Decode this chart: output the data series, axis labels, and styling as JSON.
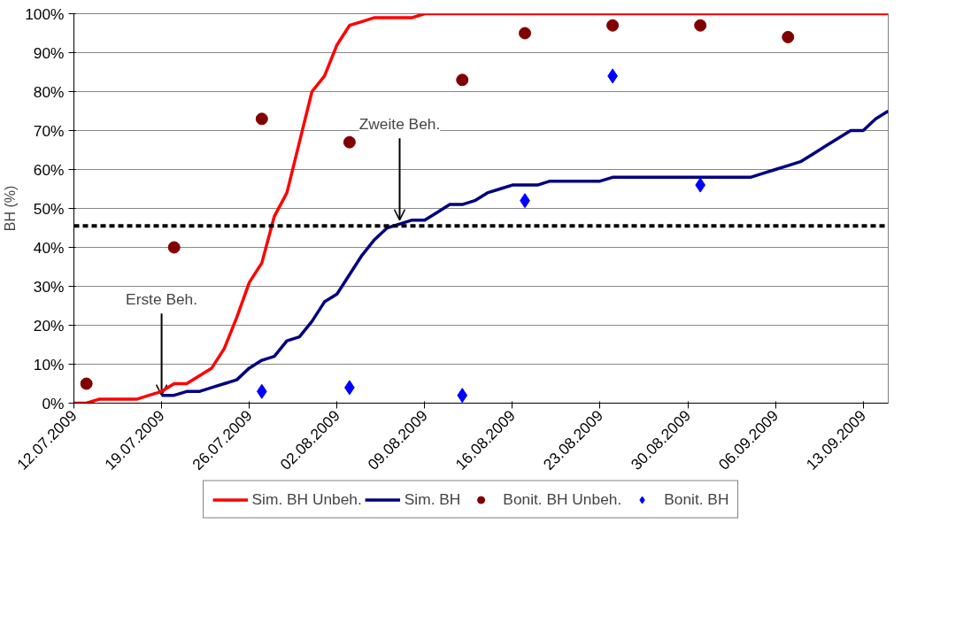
{
  "chart_data": {
    "type": "line",
    "ylabel": "BH (%)",
    "x": [
      "2009-07-12",
      "2009-07-13",
      "2009-07-14",
      "2009-07-15",
      "2009-07-16",
      "2009-07-17",
      "2009-07-18",
      "2009-07-19",
      "2009-07-20",
      "2009-07-21",
      "2009-07-22",
      "2009-07-23",
      "2009-07-24",
      "2009-07-25",
      "2009-07-26",
      "2009-07-27",
      "2009-07-28",
      "2009-07-29",
      "2009-07-30",
      "2009-07-31",
      "2009-08-01",
      "2009-08-02",
      "2009-08-03",
      "2009-08-04",
      "2009-08-05",
      "2009-08-06",
      "2009-08-07",
      "2009-08-08",
      "2009-08-09",
      "2009-08-10",
      "2009-08-11",
      "2009-08-12",
      "2009-08-13",
      "2009-08-14",
      "2009-08-15",
      "2009-08-16",
      "2009-08-17",
      "2009-08-18",
      "2009-08-19",
      "2009-08-20",
      "2009-08-21",
      "2009-08-22",
      "2009-08-23",
      "2009-08-24",
      "2009-08-25",
      "2009-08-26",
      "2009-08-27",
      "2009-08-28",
      "2009-08-29",
      "2009-08-30",
      "2009-08-31",
      "2009-09-01",
      "2009-09-02",
      "2009-09-03",
      "2009-09-04",
      "2009-09-05",
      "2009-09-06",
      "2009-09-07",
      "2009-09-08",
      "2009-09-09",
      "2009-09-10",
      "2009-09-11",
      "2009-09-12",
      "2009-09-13",
      "2009-09-14",
      "2009-09-15"
    ],
    "series": [
      {
        "name": "Sim. BH Unbeh.",
        "color": "#ff0000",
        "marker": "none",
        "values": [
          0,
          0,
          1,
          1,
          1,
          1,
          2,
          3,
          5,
          5,
          7,
          9,
          14,
          22,
          31,
          36,
          48,
          54,
          67,
          80,
          84,
          92,
          97,
          98,
          99,
          99,
          99,
          99,
          100,
          100,
          100,
          100,
          100,
          100,
          100,
          100,
          100,
          100,
          100,
          100,
          100,
          100,
          100,
          100,
          100,
          100,
          100,
          100,
          100,
          100,
          100,
          100,
          100,
          100,
          100,
          100,
          100,
          100,
          100,
          100,
          100,
          100,
          100,
          100,
          100,
          100
        ]
      },
      {
        "name": "Sim. BH",
        "color": "#000080",
        "marker": "none",
        "values": [
          null,
          null,
          null,
          null,
          null,
          null,
          null,
          2,
          2,
          3,
          3,
          4,
          5,
          6,
          9,
          11,
          12,
          16,
          17,
          21,
          26,
          28,
          33,
          38,
          42,
          45,
          46,
          47,
          47,
          49,
          51,
          51,
          52,
          54,
          55,
          56,
          56,
          56,
          57,
          57,
          57,
          57,
          57,
          58,
          58,
          58,
          58,
          58,
          58,
          58,
          58,
          58,
          58,
          58,
          58,
          59,
          60,
          61,
          62,
          64,
          66,
          68,
          70,
          70,
          73,
          75
        ]
      },
      {
        "name": "Bonit. BH Unbeh.",
        "color": "#800000",
        "type": "scatter",
        "marker": "circle",
        "x": [
          "2009-07-13",
          "2009-07-20",
          "2009-07-27",
          "2009-08-03",
          "2009-08-12",
          "2009-08-17",
          "2009-08-24",
          "2009-08-31",
          "2009-09-07"
        ],
        "values": [
          5,
          40,
          73,
          67,
          83,
          95,
          97,
          97,
          94
        ]
      },
      {
        "name": "Bonit. BH",
        "color": "#0000ff",
        "type": "scatter",
        "marker": "diamond",
        "x": [
          "2009-07-27",
          "2009-08-03",
          "2009-08-12",
          "2009-08-17",
          "2009-08-24",
          "2009-08-31"
        ],
        "values": [
          3,
          4,
          2,
          52,
          84,
          56
        ]
      }
    ],
    "xlim": [
      "2009-07-12",
      "2009-09-15"
    ],
    "xticks": [
      {
        "value": "2009-07-12",
        "label": "12.07.2009"
      },
      {
        "value": "2009-07-19",
        "label": "19.07.2009"
      },
      {
        "value": "2009-07-26",
        "label": "26.07.2009"
      },
      {
        "value": "2009-08-02",
        "label": "02.08.2009"
      },
      {
        "value": "2009-08-09",
        "label": "09.08.2009"
      },
      {
        "value": "2009-08-16",
        "label": "16.08.2009"
      },
      {
        "value": "2009-08-23",
        "label": "23.08.2009"
      },
      {
        "value": "2009-08-30",
        "label": "30.08.2009"
      },
      {
        "value": "2009-09-06",
        "label": "06.09.2009"
      },
      {
        "value": "2009-09-13",
        "label": "13.09.2009"
      }
    ],
    "ylim": [
      0,
      100
    ],
    "yticks": [
      {
        "value": 0,
        "label": "0%"
      },
      {
        "value": 10,
        "label": "10%"
      },
      {
        "value": 20,
        "label": "20%"
      },
      {
        "value": 30,
        "label": "30%"
      },
      {
        "value": 40,
        "label": "40%"
      },
      {
        "value": 50,
        "label": "50%"
      },
      {
        "value": 60,
        "label": "60%"
      },
      {
        "value": 70,
        "label": "70%"
      },
      {
        "value": 80,
        "label": "80%"
      },
      {
        "value": 90,
        "label": "90%"
      },
      {
        "value": 100,
        "label": "100%"
      }
    ],
    "ref_lines": [
      {
        "axis": "y",
        "value": 45.5,
        "color": "#000000",
        "line_style": "dashed"
      }
    ],
    "annotations": [
      {
        "text": "Erste Beh.",
        "x": "2009-07-19",
        "y": 2
      },
      {
        "text": "Zweite Beh.",
        "x": "2009-08-07",
        "y": 47
      }
    ],
    "grid": "y",
    "legend": "bottom"
  }
}
